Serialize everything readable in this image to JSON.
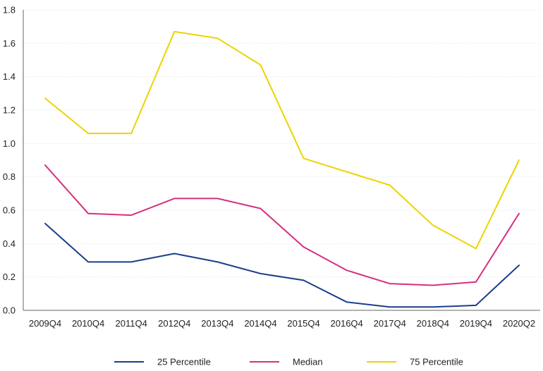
{
  "chart_data": {
    "type": "line",
    "title": "",
    "xlabel": "",
    "ylabel": "",
    "categories": [
      "2009Q4",
      "2010Q4",
      "2011Q4",
      "2012Q4",
      "2013Q4",
      "2014Q4",
      "2015Q4",
      "2016Q4",
      "2017Q4",
      "2018Q4",
      "2019Q4",
      "2020Q2"
    ],
    "ylim": [
      0,
      1.8
    ],
    "yticks": [
      "0.0",
      "0.2",
      "0.4",
      "0.6",
      "0.8",
      "1.0",
      "1.2",
      "1.4",
      "1.6",
      "1.8"
    ],
    "grid": true,
    "legend_position": "bottom",
    "series": [
      {
        "name": "25 Percentile",
        "color": "#1a3f8a",
        "values": [
          0.52,
          0.29,
          0.29,
          0.34,
          0.29,
          0.22,
          0.18,
          0.05,
          0.02,
          0.02,
          0.03,
          0.27
        ]
      },
      {
        "name": "Median",
        "color": "#d6307f",
        "values": [
          0.87,
          0.58,
          0.57,
          0.67,
          0.67,
          0.61,
          0.38,
          0.24,
          0.16,
          0.15,
          0.17,
          0.58
        ]
      },
      {
        "name": "75 Percentile",
        "color": "#ecd400",
        "values": [
          1.27,
          1.06,
          1.06,
          1.67,
          1.63,
          1.47,
          0.91,
          0.83,
          0.75,
          0.51,
          0.37,
          0.9
        ]
      }
    ]
  }
}
